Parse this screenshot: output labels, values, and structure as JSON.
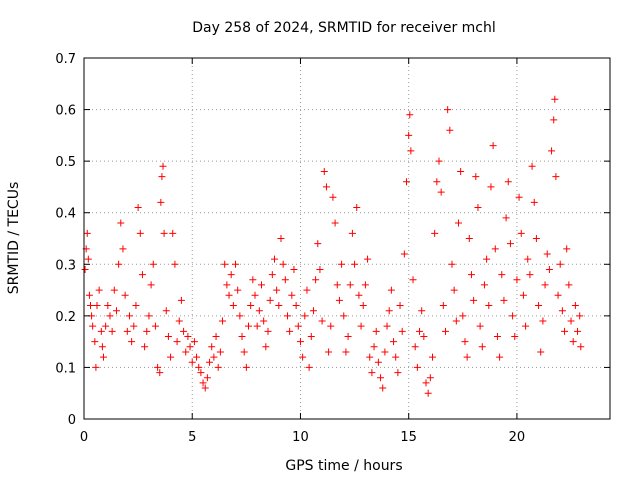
{
  "chart_data": {
    "type": "scatter",
    "title": "Day 258 of 2024, SRMTID for receiver mchl",
    "xlabel": "GPS time / hours",
    "ylabel": "SRMTID / TECUs",
    "xlim": [
      0,
      24.3
    ],
    "ylim": [
      0,
      0.7
    ],
    "xticks": [
      0,
      5,
      10,
      15,
      20
    ],
    "xtick_labels": [
      "0",
      "5",
      "10",
      "15",
      "20"
    ],
    "yticks": [
      0,
      0.1,
      0.2,
      0.3,
      0.4,
      0.5,
      0.6,
      0.7
    ],
    "ytick_labels": [
      "0",
      "0.1",
      "0.2",
      "0.3",
      "0.4",
      "0.5",
      "0.6",
      "0.7"
    ],
    "grid": true,
    "marker": "+",
    "color": "#ff0000",
    "series": [
      {
        "name": "SRMTID",
        "points": [
          [
            0.05,
            0.29
          ],
          [
            0.1,
            0.33
          ],
          [
            0.15,
            0.36
          ],
          [
            0.2,
            0.31
          ],
          [
            0.25,
            0.24
          ],
          [
            0.3,
            0.22
          ],
          [
            0.35,
            0.2
          ],
          [
            0.4,
            0.18
          ],
          [
            0.5,
            0.15
          ],
          [
            0.55,
            0.1
          ],
          [
            0.6,
            0.22
          ],
          [
            0.7,
            0.25
          ],
          [
            0.8,
            0.17
          ],
          [
            0.85,
            0.14
          ],
          [
            0.9,
            0.12
          ],
          [
            1.0,
            0.18
          ],
          [
            1.1,
            0.22
          ],
          [
            1.2,
            0.2
          ],
          [
            1.3,
            0.17
          ],
          [
            1.4,
            0.25
          ],
          [
            1.5,
            0.21
          ],
          [
            1.6,
            0.3
          ],
          [
            1.7,
            0.38
          ],
          [
            1.8,
            0.33
          ],
          [
            1.9,
            0.24
          ],
          [
            2.0,
            0.17
          ],
          [
            2.1,
            0.2
          ],
          [
            2.2,
            0.15
          ],
          [
            2.3,
            0.18
          ],
          [
            2.4,
            0.22
          ],
          [
            2.5,
            0.41
          ],
          [
            2.6,
            0.36
          ],
          [
            2.7,
            0.28
          ],
          [
            2.8,
            0.14
          ],
          [
            2.9,
            0.17
          ],
          [
            3.0,
            0.2
          ],
          [
            3.1,
            0.26
          ],
          [
            3.2,
            0.3
          ],
          [
            3.3,
            0.18
          ],
          [
            3.4,
            0.1
          ],
          [
            3.5,
            0.09
          ],
          [
            3.55,
            0.42
          ],
          [
            3.6,
            0.47
          ],
          [
            3.65,
            0.49
          ],
          [
            3.7,
            0.36
          ],
          [
            3.8,
            0.21
          ],
          [
            3.9,
            0.16
          ],
          [
            4.0,
            0.12
          ],
          [
            4.1,
            0.36
          ],
          [
            4.2,
            0.3
          ],
          [
            4.3,
            0.15
          ],
          [
            4.4,
            0.19
          ],
          [
            4.5,
            0.23
          ],
          [
            4.6,
            0.17
          ],
          [
            4.7,
            0.13
          ],
          [
            4.8,
            0.16
          ],
          [
            4.9,
            0.14
          ],
          [
            5.0,
            0.11
          ],
          [
            5.1,
            0.15
          ],
          [
            5.2,
            0.12
          ],
          [
            5.3,
            0.1
          ],
          [
            5.4,
            0.09
          ],
          [
            5.5,
            0.07
          ],
          [
            5.6,
            0.06
          ],
          [
            5.7,
            0.08
          ],
          [
            5.8,
            0.11
          ],
          [
            5.9,
            0.14
          ],
          [
            6.0,
            0.12
          ],
          [
            6.1,
            0.16
          ],
          [
            6.2,
            0.1
          ],
          [
            6.3,
            0.13
          ],
          [
            6.4,
            0.19
          ],
          [
            6.5,
            0.3
          ],
          [
            6.6,
            0.26
          ],
          [
            6.7,
            0.24
          ],
          [
            6.8,
            0.28
          ],
          [
            6.9,
            0.22
          ],
          [
            7.0,
            0.3
          ],
          [
            7.1,
            0.25
          ],
          [
            7.2,
            0.2
          ],
          [
            7.3,
            0.16
          ],
          [
            7.4,
            0.13
          ],
          [
            7.5,
            0.1
          ],
          [
            7.6,
            0.18
          ],
          [
            7.7,
            0.22
          ],
          [
            7.8,
            0.27
          ],
          [
            7.9,
            0.24
          ],
          [
            8.0,
            0.18
          ],
          [
            8.1,
            0.21
          ],
          [
            8.2,
            0.26
          ],
          [
            8.3,
            0.19
          ],
          [
            8.4,
            0.14
          ],
          [
            8.5,
            0.17
          ],
          [
            8.6,
            0.23
          ],
          [
            8.7,
            0.28
          ],
          [
            8.8,
            0.31
          ],
          [
            8.9,
            0.25
          ],
          [
            9.0,
            0.22
          ],
          [
            9.1,
            0.35
          ],
          [
            9.2,
            0.3
          ],
          [
            9.3,
            0.27
          ],
          [
            9.4,
            0.2
          ],
          [
            9.5,
            0.17
          ],
          [
            9.6,
            0.24
          ],
          [
            9.7,
            0.29
          ],
          [
            9.8,
            0.22
          ],
          [
            9.9,
            0.18
          ],
          [
            10.0,
            0.15
          ],
          [
            10.1,
            0.12
          ],
          [
            10.2,
            0.2
          ],
          [
            10.3,
            0.25
          ],
          [
            10.4,
            0.1
          ],
          [
            10.5,
            0.16
          ],
          [
            10.6,
            0.21
          ],
          [
            10.7,
            0.27
          ],
          [
            10.8,
            0.34
          ],
          [
            10.9,
            0.29
          ],
          [
            11.0,
            0.19
          ],
          [
            11.1,
            0.48
          ],
          [
            11.2,
            0.45
          ],
          [
            11.3,
            0.13
          ],
          [
            11.4,
            0.18
          ],
          [
            11.5,
            0.43
          ],
          [
            11.6,
            0.38
          ],
          [
            11.7,
            0.26
          ],
          [
            11.8,
            0.23
          ],
          [
            11.9,
            0.3
          ],
          [
            12.0,
            0.2
          ],
          [
            12.1,
            0.13
          ],
          [
            12.2,
            0.16
          ],
          [
            12.3,
            0.26
          ],
          [
            12.4,
            0.36
          ],
          [
            12.5,
            0.3
          ],
          [
            12.6,
            0.41
          ],
          [
            12.7,
            0.24
          ],
          [
            12.8,
            0.18
          ],
          [
            12.9,
            0.22
          ],
          [
            13.0,
            0.26
          ],
          [
            13.1,
            0.31
          ],
          [
            13.2,
            0.12
          ],
          [
            13.3,
            0.09
          ],
          [
            13.4,
            0.14
          ],
          [
            13.5,
            0.17
          ],
          [
            13.6,
            0.11
          ],
          [
            13.7,
            0.08
          ],
          [
            13.8,
            0.06
          ],
          [
            13.9,
            0.13
          ],
          [
            14.0,
            0.18
          ],
          [
            14.1,
            0.21
          ],
          [
            14.2,
            0.25
          ],
          [
            14.3,
            0.15
          ],
          [
            14.4,
            0.12
          ],
          [
            14.5,
            0.09
          ],
          [
            14.6,
            0.22
          ],
          [
            14.7,
            0.17
          ],
          [
            14.8,
            0.32
          ],
          [
            14.9,
            0.46
          ],
          [
            15.0,
            0.55
          ],
          [
            15.05,
            0.59
          ],
          [
            15.1,
            0.52
          ],
          [
            15.2,
            0.27
          ],
          [
            15.3,
            0.14
          ],
          [
            15.4,
            0.1
          ],
          [
            15.5,
            0.17
          ],
          [
            15.6,
            0.21
          ],
          [
            15.7,
            0.16
          ],
          [
            15.8,
            0.07
          ],
          [
            15.9,
            0.05
          ],
          [
            16.0,
            0.08
          ],
          [
            16.1,
            0.12
          ],
          [
            16.2,
            0.36
          ],
          [
            16.3,
            0.46
          ],
          [
            16.4,
            0.5
          ],
          [
            16.5,
            0.44
          ],
          [
            16.6,
            0.22
          ],
          [
            16.7,
            0.17
          ],
          [
            16.8,
            0.6
          ],
          [
            16.9,
            0.56
          ],
          [
            17.0,
            0.3
          ],
          [
            17.1,
            0.25
          ],
          [
            17.2,
            0.19
          ],
          [
            17.3,
            0.38
          ],
          [
            17.4,
            0.48
          ],
          [
            17.5,
            0.2
          ],
          [
            17.6,
            0.15
          ],
          [
            17.7,
            0.12
          ],
          [
            17.8,
            0.35
          ],
          [
            17.9,
            0.28
          ],
          [
            18.0,
            0.23
          ],
          [
            18.1,
            0.47
          ],
          [
            18.2,
            0.41
          ],
          [
            18.3,
            0.18
          ],
          [
            18.4,
            0.14
          ],
          [
            18.5,
            0.26
          ],
          [
            18.6,
            0.31
          ],
          [
            18.7,
            0.22
          ],
          [
            18.8,
            0.45
          ],
          [
            18.9,
            0.53
          ],
          [
            19.0,
            0.33
          ],
          [
            19.1,
            0.16
          ],
          [
            19.2,
            0.12
          ],
          [
            19.3,
            0.28
          ],
          [
            19.4,
            0.23
          ],
          [
            19.5,
            0.39
          ],
          [
            19.6,
            0.46
          ],
          [
            19.7,
            0.34
          ],
          [
            19.8,
            0.2
          ],
          [
            19.9,
            0.16
          ],
          [
            20.0,
            0.27
          ],
          [
            20.1,
            0.43
          ],
          [
            20.2,
            0.36
          ],
          [
            20.3,
            0.24
          ],
          [
            20.4,
            0.18
          ],
          [
            20.5,
            0.31
          ],
          [
            20.6,
            0.28
          ],
          [
            20.7,
            0.49
          ],
          [
            20.8,
            0.42
          ],
          [
            20.9,
            0.35
          ],
          [
            21.0,
            0.22
          ],
          [
            21.1,
            0.13
          ],
          [
            21.2,
            0.19
          ],
          [
            21.3,
            0.26
          ],
          [
            21.4,
            0.32
          ],
          [
            21.5,
            0.29
          ],
          [
            21.6,
            0.52
          ],
          [
            21.7,
            0.58
          ],
          [
            21.75,
            0.62
          ],
          [
            21.8,
            0.47
          ],
          [
            21.9,
            0.24
          ],
          [
            22.0,
            0.3
          ],
          [
            22.1,
            0.21
          ],
          [
            22.2,
            0.17
          ],
          [
            22.3,
            0.33
          ],
          [
            22.4,
            0.26
          ],
          [
            22.5,
            0.19
          ],
          [
            22.6,
            0.15
          ],
          [
            22.7,
            0.22
          ],
          [
            22.8,
            0.17
          ],
          [
            22.9,
            0.2
          ],
          [
            22.95,
            0.14
          ]
        ]
      }
    ]
  }
}
